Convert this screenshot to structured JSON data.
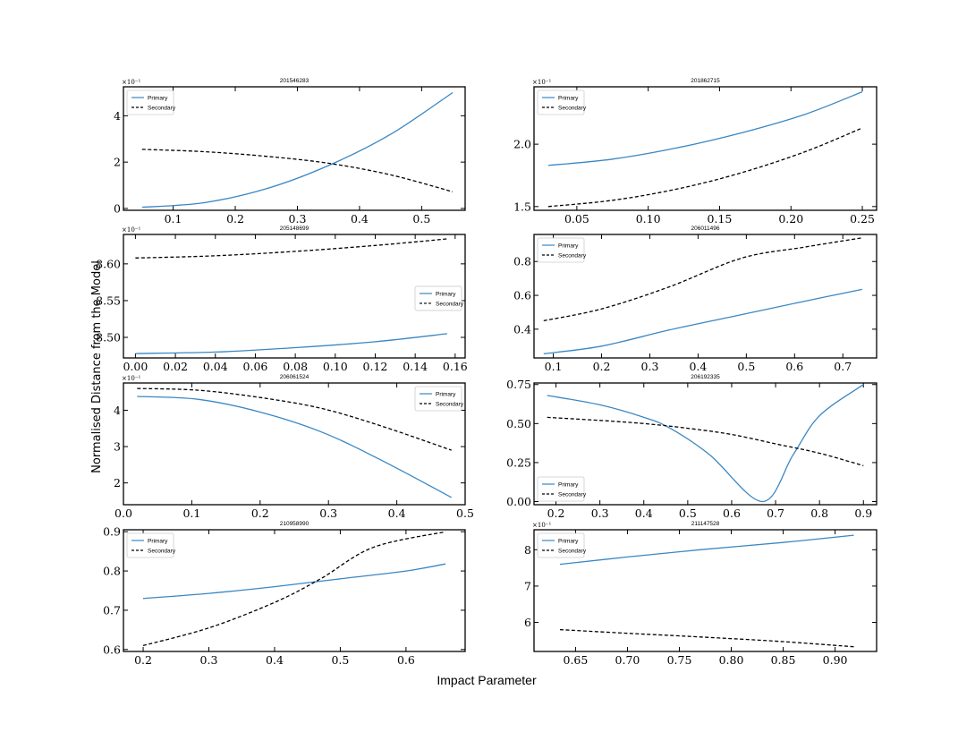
{
  "figure": {
    "ylabel": "Normalised Distance from the Model",
    "xlabel": "Impact Parameter"
  },
  "colors": {
    "primary": "#3a87c3",
    "secondary": "#000000"
  },
  "chart_data": [
    {
      "type": "line",
      "title": "201546283",
      "xlim": [
        0.02,
        0.57
      ],
      "ylim": [
        -0.08,
        5.25
      ],
      "xticks": [
        0.1,
        0.2,
        0.3,
        0.4,
        0.5
      ],
      "xtick_labels": [
        "0.1",
        "0.2",
        "0.3",
        "0.4",
        "0.5"
      ],
      "yticks": [
        0,
        2,
        4
      ],
      "ytick_labels": [
        "0",
        "2",
        "4"
      ],
      "exponent_label": "×10⁻¹",
      "legend_position": "top-left",
      "series": [
        {
          "name": "Primary",
          "style": "solid",
          "x": [
            0.05,
            0.15,
            0.25,
            0.35,
            0.45,
            0.55
          ],
          "y": [
            0.05,
            0.25,
            0.85,
            1.85,
            3.2,
            5.0
          ]
        },
        {
          "name": "Secondary",
          "style": "dashed",
          "x": [
            0.05,
            0.15,
            0.25,
            0.35,
            0.45,
            0.55
          ],
          "y": [
            2.55,
            2.45,
            2.25,
            1.95,
            1.45,
            0.72
          ]
        }
      ]
    },
    {
      "type": "line",
      "title": "201862715",
      "xlim": [
        0.02,
        0.26
      ],
      "ylim": [
        1.47,
        2.46
      ],
      "xticks": [
        0.05,
        0.1,
        0.15,
        0.2,
        0.25
      ],
      "xtick_labels": [
        "0.05",
        "0.10",
        "0.15",
        "0.20",
        "0.25"
      ],
      "yticks": [
        1.5,
        2.0
      ],
      "ytick_labels": [
        "1.5",
        "2.0"
      ],
      "exponent_label": "×10⁻¹",
      "legend_position": "top-left",
      "series": [
        {
          "name": "Primary",
          "style": "solid",
          "x": [
            0.03,
            0.075,
            0.12,
            0.165,
            0.21,
            0.25
          ],
          "y": [
            1.83,
            1.88,
            1.97,
            2.09,
            2.24,
            2.42
          ]
        },
        {
          "name": "Secondary",
          "style": "dashed",
          "x": [
            0.03,
            0.075,
            0.12,
            0.165,
            0.21,
            0.25
          ],
          "y": [
            1.5,
            1.55,
            1.64,
            1.77,
            1.94,
            2.13
          ]
        }
      ]
    },
    {
      "type": "line",
      "title": "205148699",
      "xlim": [
        -0.006,
        0.165
      ],
      "ylim": [
        8.472,
        8.64
      ],
      "xticks": [
        0,
        0.02,
        0.04,
        0.06,
        0.08,
        0.1,
        0.12,
        0.14,
        0.16
      ],
      "xtick_labels": [
        "0.00",
        "0.02",
        "0.04",
        "0.06",
        "0.08",
        "0.10",
        "0.12",
        "0.14",
        "0.16"
      ],
      "yticks": [
        8.5,
        8.55,
        8.6
      ],
      "ytick_labels": [
        "8.50",
        "8.55",
        "8.60"
      ],
      "exponent_label": "×10⁻¹",
      "legend_position": "center-right",
      "series": [
        {
          "name": "Primary",
          "style": "solid",
          "x": [
            0.0,
            0.04,
            0.08,
            0.12,
            0.156
          ],
          "y": [
            8.478,
            8.48,
            8.486,
            8.494,
            8.505
          ]
        },
        {
          "name": "Secondary",
          "style": "dashed",
          "x": [
            0.0,
            0.04,
            0.08,
            0.12,
            0.156
          ],
          "y": [
            8.608,
            8.611,
            8.617,
            8.625,
            8.634
          ]
        }
      ]
    },
    {
      "type": "line",
      "title": "206011496",
      "xlim": [
        0.06,
        0.77
      ],
      "ylim": [
        0.23,
        0.96
      ],
      "xticks": [
        0.1,
        0.2,
        0.3,
        0.4,
        0.5,
        0.6,
        0.7
      ],
      "xtick_labels": [
        "0.1",
        "0.2",
        "0.3",
        "0.4",
        "0.5",
        "0.6",
        "0.7"
      ],
      "yticks": [
        0.4,
        0.6,
        0.8
      ],
      "ytick_labels": [
        "0.4",
        "0.6",
        "0.8"
      ],
      "legend_position": "top-left",
      "series": [
        {
          "name": "Primary",
          "style": "solid",
          "x": [
            0.08,
            0.2,
            0.34,
            0.48,
            0.62,
            0.74
          ],
          "y": [
            0.255,
            0.3,
            0.395,
            0.48,
            0.565,
            0.635
          ]
        },
        {
          "name": "Secondary",
          "style": "dashed",
          "x": [
            0.08,
            0.2,
            0.34,
            0.49,
            0.62,
            0.74
          ],
          "y": [
            0.45,
            0.52,
            0.65,
            0.82,
            0.885,
            0.94
          ]
        }
      ]
    },
    {
      "type": "line",
      "title": "206061524",
      "xlim": [
        0.0,
        0.5
      ],
      "ylim": [
        1.4,
        4.75
      ],
      "xticks": [
        0,
        0.1,
        0.2,
        0.3,
        0.4,
        0.5
      ],
      "xtick_labels": [
        "0.0",
        "0.1",
        "0.2",
        "0.3",
        "0.4",
        "0.5"
      ],
      "yticks": [
        2,
        3,
        4
      ],
      "ytick_labels": [
        "2",
        "3",
        "4"
      ],
      "exponent_label": "×10⁻¹",
      "legend_position": "top-right",
      "series": [
        {
          "name": "Primary",
          "style": "solid",
          "x": [
            0.02,
            0.11,
            0.2,
            0.29,
            0.38,
            0.48
          ],
          "y": [
            4.38,
            4.3,
            3.95,
            3.4,
            2.6,
            1.6
          ]
        },
        {
          "name": "Secondary",
          "style": "dashed",
          "x": [
            0.02,
            0.11,
            0.2,
            0.29,
            0.38,
            0.48
          ],
          "y": [
            4.6,
            4.55,
            4.35,
            4.05,
            3.55,
            2.9
          ]
        }
      ]
    },
    {
      "type": "line",
      "title": "206192335",
      "xlim": [
        0.15,
        0.93
      ],
      "ylim": [
        -0.02,
        0.76
      ],
      "xticks": [
        0.2,
        0.3,
        0.4,
        0.5,
        0.6,
        0.7,
        0.8,
        0.9
      ],
      "xtick_labels": [
        "0.2",
        "0.3",
        "0.4",
        "0.5",
        "0.6",
        "0.7",
        "0.8",
        "0.9"
      ],
      "yticks": [
        0,
        0.25,
        0.5,
        0.75
      ],
      "ytick_labels": [
        "0.00",
        "0.25",
        "0.50",
        "0.75"
      ],
      "legend_position": "bottom-left",
      "series": [
        {
          "name": "Primary",
          "style": "solid",
          "x": [
            0.18,
            0.3,
            0.4,
            0.46,
            0.55,
            0.67,
            0.74,
            0.8,
            0.9
          ],
          "y": [
            0.68,
            0.62,
            0.54,
            0.47,
            0.3,
            0.0,
            0.3,
            0.55,
            0.75
          ]
        },
        {
          "name": "Secondary",
          "style": "dashed",
          "x": [
            0.18,
            0.3,
            0.4,
            0.5,
            0.6,
            0.7,
            0.8,
            0.9
          ],
          "y": [
            0.54,
            0.52,
            0.5,
            0.47,
            0.43,
            0.37,
            0.31,
            0.23
          ]
        }
      ]
    },
    {
      "type": "line",
      "title": "210958990",
      "xlim": [
        0.17,
        0.69
      ],
      "ylim": [
        0.595,
        0.905
      ],
      "xticks": [
        0.2,
        0.3,
        0.4,
        0.5,
        0.6
      ],
      "xtick_labels": [
        "0.2",
        "0.3",
        "0.4",
        "0.5",
        "0.6"
      ],
      "yticks": [
        0.6,
        0.7,
        0.8,
        0.9
      ],
      "ytick_labels": [
        "0.6",
        "0.7",
        "0.8",
        "0.9"
      ],
      "legend_position": "top-left",
      "series": [
        {
          "name": "Primary",
          "style": "solid",
          "x": [
            0.2,
            0.3,
            0.4,
            0.5,
            0.6,
            0.66
          ],
          "y": [
            0.73,
            0.743,
            0.76,
            0.78,
            0.8,
            0.818
          ]
        },
        {
          "name": "Secondary",
          "style": "dashed",
          "x": [
            0.2,
            0.3,
            0.4,
            0.47,
            0.55,
            0.66
          ],
          "y": [
            0.61,
            0.655,
            0.72,
            0.78,
            0.86,
            0.9
          ]
        }
      ]
    },
    {
      "type": "line",
      "title": "211147528",
      "xlim": [
        0.61,
        0.94
      ],
      "ylim": [
        5.2,
        8.55
      ],
      "xticks": [
        0.65,
        0.7,
        0.75,
        0.8,
        0.85,
        0.9
      ],
      "xtick_labels": [
        "0.65",
        "0.70",
        "0.75",
        "0.80",
        "0.85",
        "0.90"
      ],
      "yticks": [
        6,
        7,
        8
      ],
      "ytick_labels": [
        "6",
        "7",
        "8"
      ],
      "exponent_label": "×10⁻¹",
      "legend_position": "top-left",
      "series": [
        {
          "name": "Primary",
          "style": "solid",
          "x": [
            0.635,
            0.7,
            0.77,
            0.85,
            0.918
          ],
          "y": [
            7.6,
            7.8,
            8.0,
            8.2,
            8.4
          ]
        },
        {
          "name": "Secondary",
          "style": "dashed",
          "x": [
            0.635,
            0.7,
            0.77,
            0.85,
            0.918
          ],
          "y": [
            5.8,
            5.7,
            5.6,
            5.47,
            5.33
          ]
        }
      ]
    }
  ]
}
